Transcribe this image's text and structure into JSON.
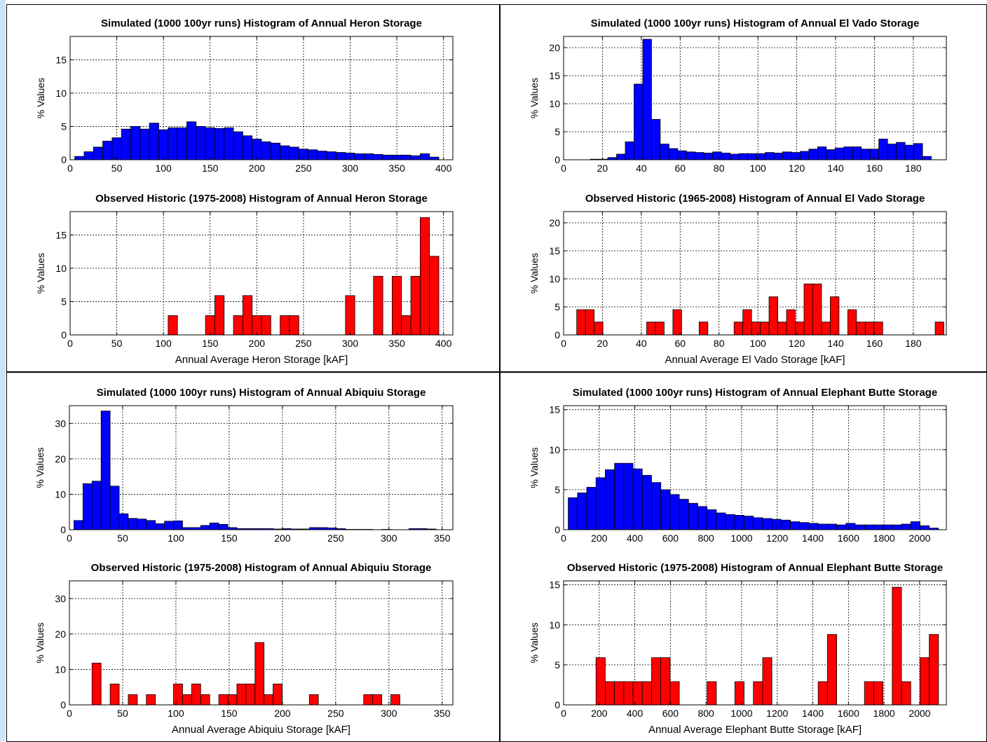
{
  "colors": {
    "simulated": "#0000ff",
    "observed": "#ff0000",
    "edge": "#000000",
    "grid": "#000000"
  },
  "chart_data": [
    {
      "type": "bar",
      "title": "Simulated (1000 100yr runs) Histogram of Annual Heron Storage",
      "xlabel": "",
      "ylabel": "% Values",
      "xlim": [
        0,
        410
      ],
      "ylim": [
        0,
        18.5
      ],
      "xticks": [
        0,
        50,
        100,
        150,
        200,
        250,
        300,
        350,
        400
      ],
      "yticks": [
        0,
        5,
        10,
        15
      ],
      "bin_width": 10,
      "bins": [
        [
          10,
          0.5
        ],
        [
          20,
          1.2
        ],
        [
          30,
          1.9
        ],
        [
          40,
          2.8
        ],
        [
          50,
          3.3
        ],
        [
          60,
          4.6
        ],
        [
          70,
          5.0
        ],
        [
          80,
          4.6
        ],
        [
          90,
          5.5
        ],
        [
          100,
          4.5
        ],
        [
          110,
          4.8
        ],
        [
          120,
          4.8
        ],
        [
          130,
          5.7
        ],
        [
          140,
          5.0
        ],
        [
          150,
          4.8
        ],
        [
          160,
          4.7
        ],
        [
          170,
          4.8
        ],
        [
          180,
          4.2
        ],
        [
          190,
          3.6
        ],
        [
          200,
          3.1
        ],
        [
          210,
          2.7
        ],
        [
          220,
          2.5
        ],
        [
          230,
          2.1
        ],
        [
          240,
          1.9
        ],
        [
          250,
          1.6
        ],
        [
          260,
          1.5
        ],
        [
          270,
          1.3
        ],
        [
          280,
          1.2
        ],
        [
          290,
          1.1
        ],
        [
          300,
          1.0
        ],
        [
          310,
          0.9
        ],
        [
          320,
          0.9
        ],
        [
          330,
          0.8
        ],
        [
          340,
          0.7
        ],
        [
          350,
          0.7
        ],
        [
          360,
          0.7
        ],
        [
          370,
          0.6
        ],
        [
          380,
          0.9
        ],
        [
          390,
          0.4
        ]
      ]
    },
    {
      "type": "bar",
      "title": "Observed Historic (1975-2008) Histogram of Annual Heron Storage",
      "xlabel": "Annual Average Heron Storage [kAF]",
      "ylabel": "% Values",
      "xlim": [
        0,
        410
      ],
      "ylim": [
        0,
        18.5
      ],
      "xticks": [
        0,
        50,
        100,
        150,
        200,
        250,
        300,
        350,
        400
      ],
      "yticks": [
        0,
        5,
        10,
        15
      ],
      "bin_width": 10,
      "bins": [
        [
          110,
          2.9
        ],
        [
          150,
          2.9
        ],
        [
          160,
          5.9
        ],
        [
          180,
          2.9
        ],
        [
          190,
          5.9
        ],
        [
          200,
          2.9
        ],
        [
          210,
          2.9
        ],
        [
          230,
          2.9
        ],
        [
          240,
          2.9
        ],
        [
          300,
          5.9
        ],
        [
          330,
          8.8
        ],
        [
          350,
          8.8
        ],
        [
          360,
          2.9
        ],
        [
          370,
          8.8
        ],
        [
          380,
          17.6
        ],
        [
          390,
          11.8
        ]
      ]
    },
    {
      "type": "bar",
      "title": "Simulated (1000 100yr runs) Histogram of Annual El Vado Storage",
      "xlabel": "",
      "ylabel": "% Values",
      "xlim": [
        0,
        197
      ],
      "ylim": [
        0,
        22
      ],
      "xticks": [
        0,
        20,
        40,
        60,
        80,
        100,
        120,
        140,
        160,
        180
      ],
      "yticks": [
        0,
        5,
        10,
        15,
        20
      ],
      "bin_width": 4.5,
      "bins": [
        [
          16,
          0.1
        ],
        [
          20.5,
          0.1
        ],
        [
          25,
          0.4
        ],
        [
          29.5,
          1.0
        ],
        [
          34,
          3.2
        ],
        [
          38.5,
          13.5
        ],
        [
          43,
          21.5
        ],
        [
          47.5,
          7.2
        ],
        [
          52,
          2.8
        ],
        [
          56.5,
          2.0
        ],
        [
          61,
          1.6
        ],
        [
          65.5,
          1.4
        ],
        [
          70,
          1.3
        ],
        [
          74.5,
          1.2
        ],
        [
          79,
          1.4
        ],
        [
          83.5,
          1.2
        ],
        [
          88,
          1.0
        ],
        [
          92.5,
          1.1
        ],
        [
          97,
          1.1
        ],
        [
          101.5,
          1.1
        ],
        [
          106,
          1.3
        ],
        [
          110.5,
          1.2
        ],
        [
          115,
          1.4
        ],
        [
          119.5,
          1.3
        ],
        [
          124,
          1.5
        ],
        [
          128.5,
          1.9
        ],
        [
          133,
          2.3
        ],
        [
          137.5,
          1.8
        ],
        [
          142,
          2.1
        ],
        [
          146.5,
          2.3
        ],
        [
          151,
          2.3
        ],
        [
          155.5,
          1.9
        ],
        [
          160,
          1.9
        ],
        [
          164.5,
          3.7
        ],
        [
          169,
          2.8
        ],
        [
          173.5,
          3.1
        ],
        [
          178,
          2.6
        ],
        [
          182.5,
          2.9
        ],
        [
          187,
          0.6
        ]
      ]
    },
    {
      "type": "bar",
      "title": "Observed Historic (1965-2008) Histogram of Annual El Vado Storage",
      "xlabel": "Annual Average El Vado Storage [kAF]",
      "ylabel": "% Values",
      "xlim": [
        0,
        197
      ],
      "ylim": [
        0,
        22
      ],
      "xticks": [
        0,
        20,
        40,
        60,
        80,
        100,
        120,
        140,
        160,
        180
      ],
      "yticks": [
        0,
        5,
        10,
        15,
        20
      ],
      "bin_width": 4.5,
      "bins": [
        [
          9,
          4.5
        ],
        [
          13.5,
          4.5
        ],
        [
          18,
          2.3
        ],
        [
          45,
          2.3
        ],
        [
          49.5,
          2.3
        ],
        [
          58.5,
          4.5
        ],
        [
          72,
          2.3
        ],
        [
          90,
          2.3
        ],
        [
          94.5,
          4.5
        ],
        [
          99,
          2.3
        ],
        [
          103.5,
          2.3
        ],
        [
          108,
          6.8
        ],
        [
          112.5,
          2.3
        ],
        [
          117,
          4.5
        ],
        [
          121.5,
          2.3
        ],
        [
          126,
          9.1
        ],
        [
          130.5,
          9.1
        ],
        [
          135,
          2.3
        ],
        [
          139.5,
          6.8
        ],
        [
          148.5,
          4.5
        ],
        [
          153,
          2.3
        ],
        [
          157.5,
          2.3
        ],
        [
          162,
          2.3
        ],
        [
          193.5,
          2.3
        ]
      ]
    },
    {
      "type": "bar",
      "title": "Simulated (1000 100yr runs) Histogram of Annual Abiquiu Storage",
      "xlabel": "",
      "ylabel": "% Values",
      "xlim": [
        0,
        360
      ],
      "ylim": [
        0,
        35
      ],
      "xticks": [
        0,
        50,
        100,
        150,
        200,
        250,
        300,
        350
      ],
      "yticks": [
        0,
        10,
        20,
        30
      ],
      "bin_width": 8.5,
      "bins": [
        [
          8.5,
          2.6
        ],
        [
          17,
          13
        ],
        [
          25.5,
          13.7
        ],
        [
          34,
          33.5
        ],
        [
          42.5,
          12.3
        ],
        [
          51,
          4.5
        ],
        [
          59.5,
          3.2
        ],
        [
          68,
          3.0
        ],
        [
          76.5,
          2.6
        ],
        [
          85,
          1.7
        ],
        [
          93.5,
          2.4
        ],
        [
          102,
          2.5
        ],
        [
          110.5,
          0.6
        ],
        [
          119,
          0.6
        ],
        [
          127.5,
          1.2
        ],
        [
          136,
          1.9
        ],
        [
          144.5,
          1.5
        ],
        [
          153,
          0.6
        ],
        [
          161.5,
          0.3
        ],
        [
          170,
          0.3
        ],
        [
          178.5,
          0.3
        ],
        [
          187,
          0.3
        ],
        [
          195.5,
          0.2
        ],
        [
          204,
          0.3
        ],
        [
          212.5,
          0.2
        ],
        [
          221,
          0.2
        ],
        [
          229.5,
          0.6
        ],
        [
          238,
          0.6
        ],
        [
          246.5,
          0.5
        ],
        [
          255,
          0.3
        ],
        [
          263.5,
          0.1
        ],
        [
          272,
          0.1
        ],
        [
          280.5,
          0.1
        ],
        [
          297.5,
          0.1
        ],
        [
          323,
          0.3
        ],
        [
          331.5,
          0.3
        ],
        [
          340,
          0.2
        ]
      ]
    },
    {
      "type": "bar",
      "title": "Observed Historic (1975-2008) Histogram of Annual Abiquiu Storage",
      "xlabel": "Annual Average Abiquiu Storage [kAF]",
      "ylabel": "% Values",
      "xlim": [
        0,
        360
      ],
      "ylim": [
        0,
        35
      ],
      "xticks": [
        0,
        50,
        100,
        150,
        200,
        250,
        300,
        350
      ],
      "yticks": [
        0,
        10,
        20,
        30
      ],
      "bin_width": 8.5,
      "bins": [
        [
          25.5,
          11.8
        ],
        [
          42.5,
          5.9
        ],
        [
          59.5,
          2.9
        ],
        [
          76.5,
          2.9
        ],
        [
          102,
          5.9
        ],
        [
          110.5,
          2.9
        ],
        [
          119,
          5.9
        ],
        [
          127.5,
          2.9
        ],
        [
          144.5,
          2.9
        ],
        [
          153,
          2.9
        ],
        [
          161.5,
          5.9
        ],
        [
          170,
          5.9
        ],
        [
          178.5,
          17.6
        ],
        [
          187,
          2.9
        ],
        [
          195.5,
          5.9
        ],
        [
          229.5,
          2.9
        ],
        [
          280.5,
          2.9
        ],
        [
          289,
          2.9
        ],
        [
          306,
          2.9
        ]
      ]
    },
    {
      "type": "bar",
      "title": "Simulated (1000 100yr runs) Histogram of Annual Elephant Butte Storage",
      "xlabel": "",
      "ylabel": "% Values",
      "xlim": [
        0,
        2150
      ],
      "ylim": [
        0,
        15.5
      ],
      "xticks": [
        0,
        200,
        400,
        600,
        800,
        1000,
        1200,
        1400,
        1600,
        1800,
        2000
      ],
      "yticks": [
        0,
        5,
        10,
        15
      ],
      "bin_width": 52,
      "bins": [
        [
          52,
          4.0
        ],
        [
          104,
          4.6
        ],
        [
          156,
          5.3
        ],
        [
          208,
          6.5
        ],
        [
          260,
          7.5
        ],
        [
          312,
          8.3
        ],
        [
          364,
          8.3
        ],
        [
          416,
          7.6
        ],
        [
          468,
          6.8
        ],
        [
          520,
          5.9
        ],
        [
          572,
          5.0
        ],
        [
          624,
          4.4
        ],
        [
          676,
          3.8
        ],
        [
          728,
          3.3
        ],
        [
          780,
          2.9
        ],
        [
          832,
          2.5
        ],
        [
          884,
          2.1
        ],
        [
          936,
          1.9
        ],
        [
          988,
          1.8
        ],
        [
          1040,
          1.7
        ],
        [
          1092,
          1.5
        ],
        [
          1144,
          1.4
        ],
        [
          1196,
          1.3
        ],
        [
          1248,
          1.2
        ],
        [
          1300,
          1.0
        ],
        [
          1352,
          0.9
        ],
        [
          1404,
          0.8
        ],
        [
          1456,
          0.7
        ],
        [
          1508,
          0.7
        ],
        [
          1560,
          0.6
        ],
        [
          1612,
          0.8
        ],
        [
          1664,
          0.6
        ],
        [
          1716,
          0.6
        ],
        [
          1768,
          0.6
        ],
        [
          1820,
          0.6
        ],
        [
          1872,
          0.6
        ],
        [
          1924,
          0.7
        ],
        [
          1976,
          1.0
        ],
        [
          2028,
          0.5
        ],
        [
          2080,
          0.2
        ]
      ]
    },
    {
      "type": "bar",
      "title": "Observed Historic (1975-2008) Histogram of Annual Elephant Butte Storage",
      "xlabel": "Annual Average Elephant Butte Storage [kAF]",
      "ylabel": "% Values",
      "xlim": [
        0,
        2150
      ],
      "ylim": [
        0,
        15.5
      ],
      "xticks": [
        0,
        200,
        400,
        600,
        800,
        1000,
        1200,
        1400,
        1600,
        1800,
        2000
      ],
      "yticks": [
        0,
        5,
        10,
        15
      ],
      "bin_width": 52,
      "bins": [
        [
          208,
          5.9
        ],
        [
          260,
          2.9
        ],
        [
          312,
          2.9
        ],
        [
          364,
          2.9
        ],
        [
          416,
          2.9
        ],
        [
          468,
          2.9
        ],
        [
          520,
          5.9
        ],
        [
          572,
          5.9
        ],
        [
          624,
          2.9
        ],
        [
          832,
          2.9
        ],
        [
          988,
          2.9
        ],
        [
          1092,
          2.9
        ],
        [
          1144,
          5.9
        ],
        [
          1456,
          2.9
        ],
        [
          1508,
          8.8
        ],
        [
          1716,
          2.9
        ],
        [
          1768,
          2.9
        ],
        [
          1872,
          14.7
        ],
        [
          1924,
          2.9
        ],
        [
          2028,
          5.9
        ],
        [
          2080,
          8.8
        ]
      ]
    }
  ]
}
